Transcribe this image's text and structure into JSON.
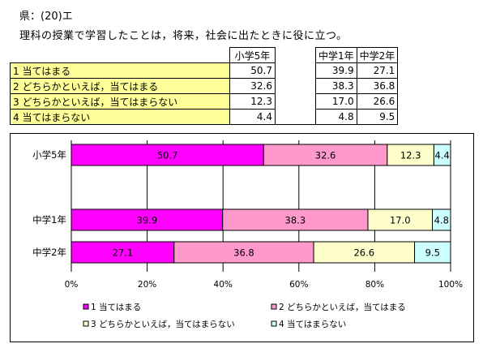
{
  "heading": "県：(20)エ",
  "question": "理科の授業で学習したことは，将来，社会に出たときに役に立つ。",
  "table": {
    "columns": [
      "小学5年",
      "中学1年",
      "中学2年"
    ],
    "rows": [
      {
        "label": "1 当てはまる",
        "values": [
          "50.7",
          "39.9",
          "27.1"
        ]
      },
      {
        "label": "2 どちらかといえば，当てはまる",
        "values": [
          "32.6",
          "38.3",
          "36.8"
        ]
      },
      {
        "label": "3 どちらかといえば，当てはまらない",
        "values": [
          "12.3",
          "17.0",
          "26.6"
        ]
      },
      {
        "label": "4 当てはまらない",
        "values": [
          "4.4",
          "4.8",
          "9.5"
        ]
      }
    ]
  },
  "chart_data": {
    "type": "bar",
    "stacked": "100%",
    "orientation": "horizontal",
    "categories": [
      "小学5年",
      "中学1年",
      "中学2年"
    ],
    "series": [
      {
        "name": "1 当てはまる",
        "color": "#ff00ff",
        "values": [
          50.7,
          39.9,
          27.1
        ],
        "labels": [
          "50.7",
          "39.9",
          "27.1"
        ]
      },
      {
        "name": "2 どちらかといえば，当てはまる",
        "color": "#ff99cc",
        "values": [
          32.6,
          38.3,
          36.8
        ],
        "labels": [
          "32.6",
          "38.3",
          "36.8"
        ]
      },
      {
        "name": "3 どちらかといえば，当てはまらない",
        "color": "#ffffcc",
        "values": [
          12.3,
          17.0,
          26.6
        ],
        "labels": [
          "12.3",
          "17.0",
          "26.6"
        ]
      },
      {
        "name": "4 当てはまらない",
        "color": "#ccffff",
        "values": [
          4.4,
          4.8,
          9.5
        ],
        "labels": [
          "4.4",
          "4.8",
          "9.5"
        ]
      }
    ],
    "xlim": [
      0,
      100
    ],
    "xticks": [
      "0%",
      "20%",
      "40%",
      "60%",
      "80%",
      "100%"
    ],
    "grid": true,
    "legend_position": "bottom"
  }
}
